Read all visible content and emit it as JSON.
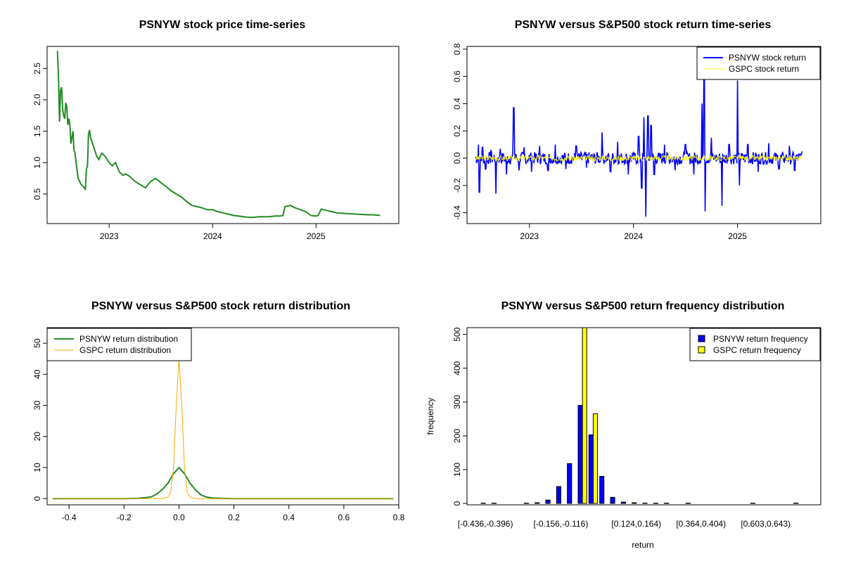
{
  "colors": {
    "psnyw_price": "#228b22",
    "psnyw_return": "#0000ff",
    "gspc_return": "#ffff00",
    "psnyw_density": "#228b22",
    "gspc_density": "#ffa500",
    "psnyw_bar": "#0000ff",
    "gspc_bar": "#ffff00"
  },
  "chart_data": [
    {
      "type": "line",
      "title": "PSNYW stock price time-series",
      "xlabel": "",
      "ylabel": "",
      "x_ticks": [
        {
          "label": "2023",
          "value": 2023.0
        },
        {
          "label": "2024",
          "value": 2024.0
        },
        {
          "label": "2025",
          "value": 2025.0
        }
      ],
      "y_ticks": [
        {
          "label": "0.5",
          "value": 0.5
        },
        {
          "label": "1.0",
          "value": 1.0
        },
        {
          "label": "1.5",
          "value": 1.5
        },
        {
          "label": "2.0",
          "value": 2.0
        },
        {
          "label": "2.5",
          "value": 2.5
        }
      ],
      "xlim": [
        2022.4,
        2025.8
      ],
      "ylim": [
        0.03,
        2.85
      ],
      "series": [
        {
          "name": "PSNYW",
          "x": [
            2022.5,
            2022.51,
            2022.52,
            2022.53,
            2022.54,
            2022.55,
            2022.56,
            2022.57,
            2022.58,
            2022.59,
            2022.6,
            2022.61,
            2022.62,
            2022.63,
            2022.64,
            2022.65,
            2022.66,
            2022.67,
            2022.68,
            2022.7,
            2022.72,
            2022.73,
            2022.75,
            2022.76,
            2022.77,
            2022.78,
            2022.79,
            2022.8,
            2022.81,
            2022.82,
            2022.83,
            2022.84,
            2022.86,
            2022.88,
            2022.9,
            2022.93,
            2022.96,
            2023.0,
            2023.03,
            2023.06,
            2023.1,
            2023.13,
            2023.16,
            2023.2,
            2023.25,
            2023.3,
            2023.35,
            2023.4,
            2023.45,
            2023.5,
            2023.55,
            2023.6,
            2023.65,
            2023.7,
            2023.75,
            2023.8,
            2023.85,
            2023.9,
            2023.95,
            2024.0,
            2024.05,
            2024.1,
            2024.15,
            2024.2,
            2024.25,
            2024.3,
            2024.35,
            2024.4,
            2024.45,
            2024.5,
            2024.55,
            2024.6,
            2024.65,
            2024.68,
            2024.7,
            2024.75,
            2024.8,
            2024.85,
            2024.9,
            2024.95,
            2025.0,
            2025.02,
            2025.05,
            2025.1,
            2025.15,
            2025.2,
            2025.3,
            2025.4,
            2025.5,
            2025.55,
            2025.62
          ],
          "y": [
            2.78,
            2.35,
            1.65,
            2.15,
            2.2,
            1.85,
            1.75,
            1.7,
            1.95,
            1.9,
            1.6,
            1.7,
            1.6,
            1.3,
            1.4,
            1.5,
            1.2,
            1.15,
            1.0,
            0.75,
            0.68,
            0.65,
            0.62,
            0.6,
            0.58,
            0.9,
            0.95,
            1.45,
            1.52,
            1.4,
            1.35,
            1.3,
            1.2,
            1.1,
            1.05,
            1.15,
            1.1,
            1.0,
            0.95,
            1.0,
            0.85,
            0.8,
            0.82,
            0.78,
            0.7,
            0.65,
            0.6,
            0.7,
            0.75,
            0.68,
            0.62,
            0.55,
            0.5,
            0.45,
            0.38,
            0.32,
            0.3,
            0.28,
            0.25,
            0.25,
            0.22,
            0.2,
            0.18,
            0.16,
            0.15,
            0.14,
            0.13,
            0.13,
            0.14,
            0.14,
            0.14,
            0.15,
            0.15,
            0.16,
            0.3,
            0.32,
            0.28,
            0.25,
            0.22,
            0.16,
            0.15,
            0.16,
            0.26,
            0.24,
            0.22,
            0.2,
            0.19,
            0.18,
            0.17,
            0.17,
            0.16
          ]
        }
      ]
    },
    {
      "type": "line",
      "title": "PSNYW versus S&P500 stock return time-series",
      "xlabel": "",
      "ylabel": "",
      "x_ticks": [
        {
          "label": "2023",
          "value": 2023.0
        },
        {
          "label": "2024",
          "value": 2024.0
        },
        {
          "label": "2025",
          "value": 2025.0
        }
      ],
      "y_ticks": [
        {
          "label": "-0.4",
          "value": -0.4
        },
        {
          "label": "-0.2",
          "value": -0.2
        },
        {
          "label": "0.0",
          "value": 0.0
        },
        {
          "label": "0.2",
          "value": 0.2
        },
        {
          "label": "0.4",
          "value": 0.4
        },
        {
          "label": "0.6",
          "value": 0.6
        },
        {
          "label": "0.8",
          "value": 0.8
        }
      ],
      "xlim": [
        2022.4,
        2025.8
      ],
      "ylim": [
        -0.48,
        0.82
      ],
      "legend": [
        "PSNYW stock return",
        "GSPC stock return"
      ],
      "legend_position": "top-right",
      "series": [
        {
          "name": "PSNYW stock return",
          "spikes": [
            {
              "x": 2022.51,
              "y": 0.1
            },
            {
              "x": 2022.52,
              "y": -0.25
            },
            {
              "x": 2022.55,
              "y": 0.08
            },
            {
              "x": 2022.58,
              "y": -0.08
            },
            {
              "x": 2022.63,
              "y": 0.06
            },
            {
              "x": 2022.68,
              "y": -0.26
            },
            {
              "x": 2022.72,
              "y": 0.07
            },
            {
              "x": 2022.78,
              "y": -0.12
            },
            {
              "x": 2022.85,
              "y": 0.37
            },
            {
              "x": 2022.9,
              "y": -0.09
            },
            {
              "x": 2022.95,
              "y": 0.08
            },
            {
              "x": 2023.02,
              "y": -0.1
            },
            {
              "x": 2023.1,
              "y": 0.09
            },
            {
              "x": 2023.18,
              "y": -0.09
            },
            {
              "x": 2023.25,
              "y": 0.1
            },
            {
              "x": 2023.35,
              "y": -0.08
            },
            {
              "x": 2023.45,
              "y": 0.09
            },
            {
              "x": 2023.55,
              "y": -0.07
            },
            {
              "x": 2023.7,
              "y": 0.19
            },
            {
              "x": 2023.78,
              "y": -0.1
            },
            {
              "x": 2023.85,
              "y": 0.12
            },
            {
              "x": 2023.95,
              "y": -0.12
            },
            {
              "x": 2024.05,
              "y": 0.16
            },
            {
              "x": 2024.08,
              "y": -0.22
            },
            {
              "x": 2024.1,
              "y": 0.3
            },
            {
              "x": 2024.12,
              "y": -0.43
            },
            {
              "x": 2024.14,
              "y": 0.31
            },
            {
              "x": 2024.17,
              "y": 0.24
            },
            {
              "x": 2024.2,
              "y": -0.12
            },
            {
              "x": 2024.3,
              "y": 0.1
            },
            {
              "x": 2024.4,
              "y": -0.09
            },
            {
              "x": 2024.5,
              "y": 0.1
            },
            {
              "x": 2024.58,
              "y": -0.12
            },
            {
              "x": 2024.66,
              "y": 0.4
            },
            {
              "x": 2024.68,
              "y": 0.58
            },
            {
              "x": 2024.69,
              "y": -0.39
            },
            {
              "x": 2024.75,
              "y": 0.15
            },
            {
              "x": 2024.85,
              "y": -0.35
            },
            {
              "x": 2024.92,
              "y": 0.1
            },
            {
              "x": 2025.0,
              "y": 0.57
            },
            {
              "x": 2025.02,
              "y": -0.2
            },
            {
              "x": 2025.1,
              "y": 0.1
            },
            {
              "x": 2025.2,
              "y": -0.1
            },
            {
              "x": 2025.3,
              "y": 0.11
            },
            {
              "x": 2025.4,
              "y": -0.08
            },
            {
              "x": 2025.5,
              "y": 0.09
            },
            {
              "x": 2025.55,
              "y": -0.09
            },
            {
              "x": 2025.62,
              "y": 0.05
            }
          ]
        },
        {
          "name": "GSPC stock return",
          "amplitude": 0.02
        }
      ],
      "x_start": 2022.48,
      "x_end": 2025.62
    },
    {
      "type": "line",
      "title": "PSNYW versus S&P500 stock return distribution",
      "xlabel": "",
      "ylabel": "",
      "x_ticks": [
        {
          "label": "-0.4",
          "value": -0.4
        },
        {
          "label": "-0.2",
          "value": -0.2
        },
        {
          "label": "0.0",
          "value": 0.0
        },
        {
          "label": "0.2",
          "value": 0.2
        },
        {
          "label": "0.4",
          "value": 0.4
        },
        {
          "label": "0.6",
          "value": 0.6
        },
        {
          "label": "0.8",
          "value": 0.8
        }
      ],
      "y_ticks": [
        {
          "label": "0",
          "value": 0
        },
        {
          "label": "10",
          "value": 10
        },
        {
          "label": "20",
          "value": 20
        },
        {
          "label": "30",
          "value": 30
        },
        {
          "label": "40",
          "value": 40
        },
        {
          "label": "50",
          "value": 50
        }
      ],
      "xlim": [
        -0.48,
        0.8
      ],
      "ylim": [
        -2,
        55
      ],
      "legend": [
        "PSNYW return distribution",
        "GSPC return distribution"
      ],
      "legend_position": "top-left",
      "series": [
        {
          "name": "PSNYW return distribution",
          "x": [
            -0.46,
            -0.2,
            -0.15,
            -0.12,
            -0.1,
            -0.08,
            -0.06,
            -0.04,
            -0.02,
            0.0,
            0.02,
            0.04,
            0.06,
            0.08,
            0.1,
            0.12,
            0.15,
            0.2,
            0.3,
            0.78
          ],
          "y": [
            0,
            0,
            0.1,
            0.3,
            0.6,
            1.5,
            3.0,
            5.0,
            8.0,
            10.0,
            8.0,
            5.0,
            2.8,
            1.2,
            0.5,
            0.2,
            0.1,
            0,
            0,
            0
          ]
        },
        {
          "name": "GSPC return distribution",
          "x": [
            -0.46,
            -0.06,
            -0.04,
            -0.03,
            -0.02,
            -0.01,
            0.0,
            0.01,
            0.02,
            0.03,
            0.04,
            0.06,
            0.78
          ],
          "y": [
            0,
            0,
            0.5,
            2,
            10,
            30,
            45,
            30,
            10,
            2,
            0.5,
            0,
            0
          ]
        }
      ]
    },
    {
      "type": "bar",
      "title": "PSNYW versus S&P500 return frequency distribution",
      "xlabel": "return",
      "ylabel": "frequency",
      "categories": [
        "[-0.436,-0.396)",
        "[-0.396,-0.356)",
        "[-0.356,-0.316)",
        "[-0.316,-0.276)",
        "[-0.276,-0.236)",
        "[-0.236,-0.196)",
        "[-0.196,-0.156)",
        "[-0.156,-0.116)",
        "[-0.116,-0.076)",
        "[-0.076,-0.036)",
        "[-0.036,0.004)",
        "[0.004,0.044)",
        "[0.044,0.084)",
        "[0.084,0.124)",
        "[0.124,0.164)",
        "[0.164,0.204)",
        "[0.204,0.244)",
        "[0.244,0.284)",
        "[0.284,0.324)",
        "[0.324,0.364)",
        "[0.364,0.404)",
        "[0.404,0.444)",
        "[0.444,0.484)",
        "[0.484,0.524)",
        "[0.524,0.564)",
        "[0.564,0.603)",
        "[0.603,0.643)",
        "[0.643,0.683)",
        "[0.683,0.723)",
        "[0.723,0.763)"
      ],
      "shown_category_labels": [
        "[-0.436,-0.396)",
        "[-0.156,-0.116)",
        "[0.124,0.164)",
        "[0.364,0.404)",
        "[0.603,0.643)"
      ],
      "y_ticks": [
        {
          "label": "0",
          "value": 0
        },
        {
          "label": "100",
          "value": 100
        },
        {
          "label": "200",
          "value": 200
        },
        {
          "label": "300",
          "value": 300
        },
        {
          "label": "400",
          "value": 400
        },
        {
          "label": "500",
          "value": 500
        }
      ],
      "ylim": [
        0,
        520
      ],
      "legend": [
        "PSNYW return frequency",
        "GSPC return frequency"
      ],
      "legend_position": "top-right",
      "series": [
        {
          "name": "PSNYW return frequency",
          "values": [
            1,
            1,
            0,
            0,
            1,
            2,
            10,
            50,
            118,
            290,
            203,
            80,
            18,
            4,
            2,
            1,
            1,
            1,
            0,
            1,
            0,
            0,
            0,
            0,
            0,
            1,
            0,
            0,
            0,
            1
          ]
        },
        {
          "name": "GSPC return frequency",
          "values": [
            0,
            0,
            0,
            0,
            0,
            0,
            0,
            0,
            0,
            520,
            265,
            0,
            0,
            0,
            0,
            0,
            0,
            0,
            0,
            0,
            0,
            0,
            0,
            0,
            0,
            0,
            0,
            0,
            0,
            0
          ]
        }
      ]
    }
  ]
}
